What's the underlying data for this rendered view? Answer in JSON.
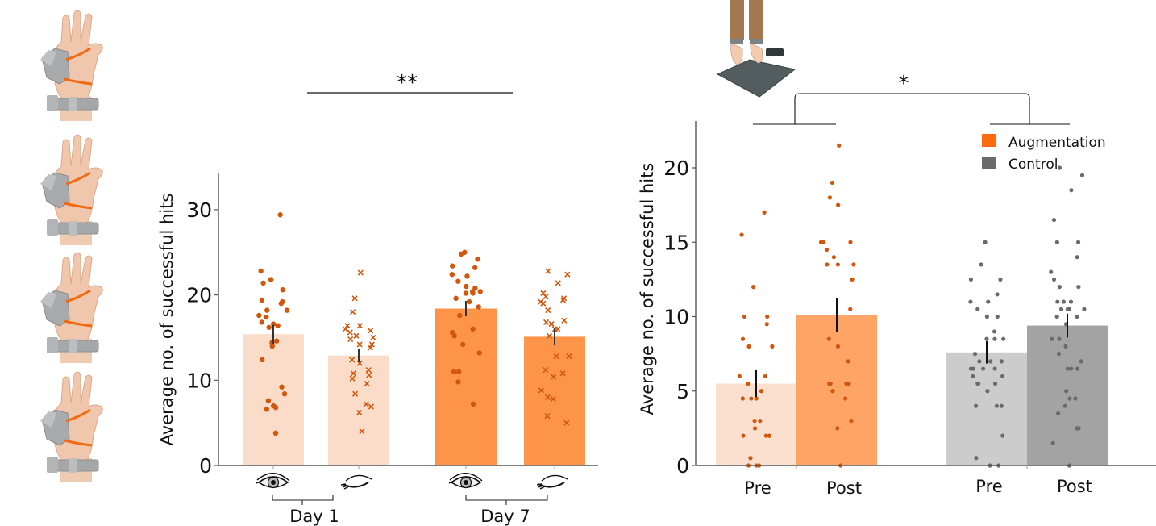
{
  "chart_data": [
    {
      "type": "bar",
      "title": "",
      "xlabel": "",
      "ylabel": "Average no. of successful hits",
      "ylim": [
        0,
        34
      ],
      "yticks": [
        "0",
        "10",
        "20",
        "30"
      ],
      "grid": false,
      "categories": [
        "Day 1 - eyes open",
        "Day 1 - eyes closed",
        "Day 7 - eyes open",
        "Day 7 - eyes closed"
      ],
      "group_labels": [
        "Day 1",
        "Day 7"
      ],
      "category_icons": [
        "eye-open-icon",
        "eye-closed-icon",
        "eye-open-icon",
        "eye-closed-icon"
      ],
      "values": [
        15.4,
        12.9,
        18.4,
        15.1
      ],
      "errors": [
        1.1,
        0.8,
        0.9,
        1.0
      ],
      "bar_colors": [
        "#fbdcc8",
        "#fbdcc8",
        "#fe9448",
        "#fe9448"
      ],
      "point_color": "#d2560c",
      "point_markers": [
        "circle",
        "x",
        "circle",
        "x"
      ],
      "points": [
        [
          29.4,
          22.8,
          21.8,
          20.6,
          21.4,
          19.2,
          19.4,
          18.2,
          18.2,
          19.0,
          17.6,
          17.4,
          16.4,
          16.6,
          16.8,
          16.2,
          14.6,
          14.4,
          14.0,
          12.4,
          9.2,
          8.4,
          7.6,
          7.0,
          6.8,
          6.6,
          3.8
        ],
        [
          22.6,
          19.6,
          18.0,
          16.4,
          16.4,
          16.0,
          15.8,
          15.6,
          15.2,
          15.0,
          14.8,
          14.2,
          14.2,
          13.8,
          12.4,
          12.0,
          11.2,
          10.8,
          10.6,
          10.2,
          9.6,
          8.4,
          7.2,
          6.9,
          6.2,
          4.0
        ],
        [
          25.0,
          24.8,
          24.2,
          23.4,
          23.2,
          22.4,
          22.2,
          21.6,
          21.0,
          20.8,
          20.4,
          20.4,
          20.2,
          20.2,
          19.6,
          19.2,
          18.6,
          17.6,
          16.0,
          15.6,
          15.2,
          14.2,
          13.2,
          11.0,
          11.0,
          9.8,
          7.2
        ],
        [
          22.8,
          22.4,
          21.4,
          20.2,
          19.8,
          19.6,
          19.4,
          19.2,
          19.0,
          18.2,
          17.0,
          16.8,
          16.6,
          16.0,
          16.0,
          15.2,
          12.8,
          12.8,
          11.2,
          10.8,
          10.4,
          8.8,
          8.0,
          7.8,
          5.8,
          5.0
        ]
      ],
      "significance": [
        {
          "label": "**",
          "between": [
            "Day 1",
            "Day 7"
          ]
        }
      ],
      "illustrations": [
        "hand-with-extra-robotic-thumb-pose-1",
        "hand-with-extra-robotic-thumb-pose-2",
        "hand-with-extra-robotic-thumb-pose-3",
        "hand-with-extra-robotic-thumb-pose-4"
      ]
    },
    {
      "type": "bar",
      "title": "",
      "xlabel": "",
      "ylabel": "Average no. of successful hits",
      "ylim": [
        0,
        23
      ],
      "yticks": [
        "0",
        "5",
        "10",
        "15",
        "20"
      ],
      "grid": false,
      "categories": [
        "Pre",
        "Post",
        "Pre",
        "Post"
      ],
      "groups": [
        "Augmentation",
        "Augmentation",
        "Control",
        "Control"
      ],
      "values": [
        5.5,
        10.1,
        7.6,
        9.4
      ],
      "errors": [
        0.9,
        1.15,
        0.75,
        0.8
      ],
      "bar_colors": [
        "#fbe0d0",
        "#fea566",
        "#cccccc",
        "#a3a3a3"
      ],
      "point_colors": [
        "#d2560c",
        "#d2560c",
        "#6b6b6b",
        "#6b6b6b"
      ],
      "legend": {
        "placement": "top-right",
        "entries": [
          {
            "label": "Augmentation",
            "color": "#ff6a0d"
          },
          {
            "label": "Control",
            "color": "#6b6b6b"
          }
        ]
      },
      "points": [
        [
          17.0,
          15.5,
          12.0,
          10.0,
          10.0,
          9.5,
          8.5,
          8.0,
          8.0,
          6.0,
          6.0,
          5.5,
          5.0,
          4.5,
          4.5,
          4.5,
          3.0,
          3.0,
          2.5,
          2.0,
          2.0,
          2.0,
          0.5,
          0.0,
          0.0,
          0.0,
          0.0
        ],
        [
          21.5,
          19.0,
          18.0,
          17.5,
          15.0,
          15.0,
          15.0,
          14.5,
          14.0,
          13.5,
          13.5,
          13.5,
          12.5,
          10.5,
          8.5,
          8.0,
          7.0,
          5.5,
          5.5,
          5.5,
          5.5,
          5.0,
          4.5,
          3.0,
          2.5,
          0.0
        ],
        [
          15.0,
          13.5,
          12.5,
          12.5,
          11.5,
          11.0,
          11.0,
          10.5,
          10.0,
          10.0,
          9.0,
          8.5,
          8.5,
          8.5,
          7.5,
          7.0,
          7.0,
          7.0,
          6.5,
          6.5,
          6.5,
          6.5,
          6.0,
          6.0,
          5.5,
          5.5,
          5.5,
          5.0,
          4.0,
          4.0,
          4.0,
          2.0,
          0.5,
          0.0,
          0.0
        ],
        [
          20.0,
          19.5,
          18.5,
          16.5,
          15.0,
          15.0,
          14.0,
          13.0,
          12.5,
          12.0,
          12.0,
          11.0,
          11.0,
          11.0,
          10.5,
          10.5,
          10.5,
          10.5,
          10.0,
          10.0,
          9.5,
          8.5,
          8.5,
          8.0,
          7.5,
          7.0,
          6.5,
          6.5,
          6.5,
          5.0,
          4.5,
          4.5,
          4.0,
          3.5,
          2.5,
          2.5,
          1.5,
          0.0
        ]
      ],
      "significance": [
        {
          "label": "*",
          "between": [
            "Augmentation",
            "Control"
          ]
        }
      ],
      "illustrations": [
        "feet-on-force-plate-with-ankle-bands"
      ]
    }
  ]
}
